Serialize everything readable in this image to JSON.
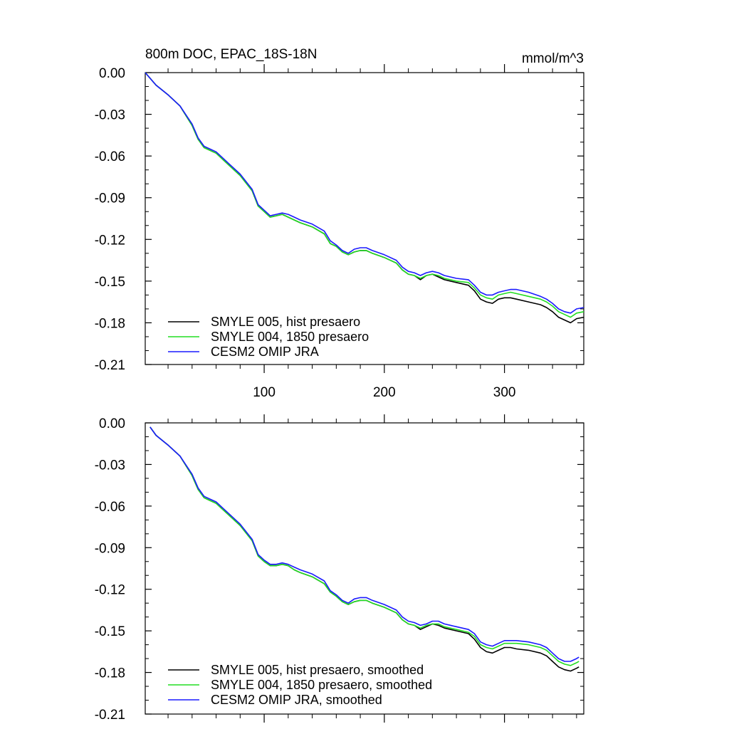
{
  "chart_data": [
    {
      "type": "line",
      "title": "800m DOC, EPAC_18S-18N",
      "units": "mmol/m^3",
      "xlabel": "",
      "ylabel": "",
      "xlim": [
        1,
        366
      ],
      "ylim": [
        -0.21,
        0.0
      ],
      "xticks": [
        100,
        200,
        300
      ],
      "xtick_labels": [
        "100",
        "200",
        "300"
      ],
      "yticks": [
        0.0,
        -0.03,
        -0.06,
        -0.09,
        -0.12,
        -0.15,
        -0.18,
        -0.21
      ],
      "ytick_labels": [
        "0.00",
        "-0.03",
        "-0.06",
        "-0.09",
        "-0.12",
        "-0.15",
        "-0.18",
        "-0.21"
      ],
      "legend_position": "bottom-left",
      "x": [
        1,
        10,
        20,
        30,
        40,
        45,
        50,
        55,
        60,
        65,
        70,
        80,
        90,
        95,
        100,
        105,
        110,
        115,
        120,
        125,
        130,
        140,
        150,
        155,
        160,
        165,
        170,
        175,
        180,
        185,
        190,
        200,
        210,
        215,
        220,
        225,
        230,
        235,
        240,
        245,
        250,
        260,
        270,
        275,
        280,
        285,
        290,
        295,
        300,
        305,
        310,
        320,
        330,
        335,
        340,
        345,
        350,
        355,
        360,
        366
      ],
      "series": [
        {
          "name": "SMYLE 005, hist presaero",
          "color": "#000000",
          "values": [
            0.0,
            -0.009,
            -0.016,
            -0.024,
            -0.038,
            -0.048,
            -0.054,
            -0.056,
            -0.058,
            -0.062,
            -0.066,
            -0.074,
            -0.085,
            -0.096,
            -0.1,
            -0.104,
            -0.103,
            -0.102,
            -0.104,
            -0.106,
            -0.108,
            -0.111,
            -0.116,
            -0.123,
            -0.125,
            -0.129,
            -0.131,
            -0.129,
            -0.128,
            -0.128,
            -0.13,
            -0.133,
            -0.137,
            -0.142,
            -0.145,
            -0.146,
            -0.149,
            -0.146,
            -0.145,
            -0.147,
            -0.149,
            -0.151,
            -0.153,
            -0.157,
            -0.163,
            -0.165,
            -0.166,
            -0.163,
            -0.162,
            -0.162,
            -0.163,
            -0.165,
            -0.167,
            -0.169,
            -0.172,
            -0.176,
            -0.178,
            -0.18,
            -0.177,
            -0.176
          ]
        },
        {
          "name": "SMYLE 004, 1850 presaero",
          "color": "#22dd22",
          "values": [
            0.0,
            -0.009,
            -0.016,
            -0.024,
            -0.038,
            -0.048,
            -0.054,
            -0.056,
            -0.058,
            -0.062,
            -0.066,
            -0.074,
            -0.085,
            -0.096,
            -0.1,
            -0.104,
            -0.103,
            -0.102,
            -0.104,
            -0.106,
            -0.108,
            -0.111,
            -0.116,
            -0.123,
            -0.125,
            -0.129,
            -0.131,
            -0.129,
            -0.128,
            -0.128,
            -0.13,
            -0.133,
            -0.137,
            -0.142,
            -0.145,
            -0.146,
            -0.148,
            -0.146,
            -0.145,
            -0.146,
            -0.148,
            -0.15,
            -0.151,
            -0.155,
            -0.16,
            -0.162,
            -0.163,
            -0.16,
            -0.159,
            -0.158,
            -0.159,
            -0.161,
            -0.163,
            -0.165,
            -0.168,
            -0.172,
            -0.174,
            -0.176,
            -0.173,
            -0.172
          ]
        },
        {
          "name": "CESM2 OMIP JRA",
          "color": "#1a1aff",
          "values": [
            0.0,
            -0.009,
            -0.016,
            -0.024,
            -0.037,
            -0.047,
            -0.053,
            -0.055,
            -0.057,
            -0.061,
            -0.065,
            -0.073,
            -0.084,
            -0.095,
            -0.099,
            -0.103,
            -0.102,
            -0.101,
            -0.102,
            -0.104,
            -0.106,
            -0.109,
            -0.114,
            -0.121,
            -0.124,
            -0.128,
            -0.13,
            -0.127,
            -0.126,
            -0.126,
            -0.128,
            -0.131,
            -0.135,
            -0.14,
            -0.143,
            -0.144,
            -0.146,
            -0.144,
            -0.143,
            -0.144,
            -0.146,
            -0.148,
            -0.149,
            -0.153,
            -0.158,
            -0.16,
            -0.16,
            -0.158,
            -0.157,
            -0.156,
            -0.156,
            -0.158,
            -0.161,
            -0.163,
            -0.166,
            -0.17,
            -0.172,
            -0.173,
            -0.17,
            -0.169
          ]
        }
      ]
    },
    {
      "type": "line",
      "title": "",
      "xlabel": "",
      "ylabel": "",
      "xlim": [
        1,
        366
      ],
      "ylim": [
        -0.21,
        0.0
      ],
      "xticks": [
        100,
        200,
        300
      ],
      "yticks": [
        0.0,
        -0.03,
        -0.06,
        -0.09,
        -0.12,
        -0.15,
        -0.18,
        -0.21
      ],
      "ytick_labels": [
        "0.00",
        "-0.03",
        "-0.06",
        "-0.09",
        "-0.12",
        "-0.15",
        "-0.18",
        "-0.21"
      ],
      "legend_position": "bottom-left",
      "x": [
        5,
        10,
        20,
        30,
        40,
        45,
        50,
        55,
        60,
        65,
        70,
        80,
        90,
        95,
        100,
        105,
        110,
        115,
        120,
        125,
        130,
        140,
        150,
        155,
        160,
        165,
        170,
        175,
        180,
        185,
        190,
        200,
        210,
        215,
        220,
        225,
        230,
        235,
        240,
        245,
        250,
        260,
        270,
        275,
        280,
        285,
        290,
        295,
        300,
        305,
        310,
        320,
        330,
        335,
        340,
        345,
        350,
        355,
        360,
        362
      ],
      "series": [
        {
          "name": "SMYLE 005, hist presaero, smoothed",
          "color": "#000000",
          "values": [
            -0.003,
            -0.009,
            -0.016,
            -0.024,
            -0.038,
            -0.048,
            -0.054,
            -0.056,
            -0.058,
            -0.062,
            -0.066,
            -0.074,
            -0.085,
            -0.096,
            -0.1,
            -0.103,
            -0.103,
            -0.102,
            -0.103,
            -0.106,
            -0.108,
            -0.111,
            -0.116,
            -0.122,
            -0.125,
            -0.129,
            -0.131,
            -0.129,
            -0.128,
            -0.128,
            -0.13,
            -0.133,
            -0.137,
            -0.142,
            -0.145,
            -0.146,
            -0.149,
            -0.147,
            -0.145,
            -0.146,
            -0.148,
            -0.15,
            -0.152,
            -0.156,
            -0.162,
            -0.165,
            -0.166,
            -0.164,
            -0.162,
            -0.162,
            -0.163,
            -0.164,
            -0.166,
            -0.168,
            -0.172,
            -0.176,
            -0.178,
            -0.179,
            -0.177,
            -0.176
          ]
        },
        {
          "name": "SMYLE 004, 1850 presaero, smoothed",
          "color": "#22dd22",
          "values": [
            -0.003,
            -0.009,
            -0.016,
            -0.024,
            -0.038,
            -0.048,
            -0.054,
            -0.056,
            -0.058,
            -0.062,
            -0.066,
            -0.074,
            -0.085,
            -0.096,
            -0.1,
            -0.103,
            -0.103,
            -0.102,
            -0.103,
            -0.106,
            -0.108,
            -0.111,
            -0.116,
            -0.122,
            -0.125,
            -0.129,
            -0.131,
            -0.129,
            -0.128,
            -0.128,
            -0.13,
            -0.133,
            -0.137,
            -0.142,
            -0.145,
            -0.146,
            -0.148,
            -0.146,
            -0.145,
            -0.145,
            -0.147,
            -0.149,
            -0.151,
            -0.154,
            -0.16,
            -0.162,
            -0.163,
            -0.161,
            -0.159,
            -0.159,
            -0.159,
            -0.16,
            -0.162,
            -0.164,
            -0.168,
            -0.172,
            -0.174,
            -0.175,
            -0.173,
            -0.172
          ]
        },
        {
          "name": "CESM2 OMIP JRA, smoothed",
          "color": "#1a1aff",
          "values": [
            -0.003,
            -0.009,
            -0.016,
            -0.024,
            -0.037,
            -0.047,
            -0.053,
            -0.055,
            -0.057,
            -0.061,
            -0.065,
            -0.073,
            -0.084,
            -0.095,
            -0.099,
            -0.102,
            -0.102,
            -0.101,
            -0.102,
            -0.104,
            -0.106,
            -0.109,
            -0.114,
            -0.121,
            -0.124,
            -0.128,
            -0.13,
            -0.127,
            -0.126,
            -0.126,
            -0.128,
            -0.131,
            -0.135,
            -0.14,
            -0.143,
            -0.144,
            -0.146,
            -0.145,
            -0.143,
            -0.143,
            -0.145,
            -0.147,
            -0.149,
            -0.152,
            -0.158,
            -0.16,
            -0.161,
            -0.159,
            -0.157,
            -0.157,
            -0.157,
            -0.158,
            -0.16,
            -0.162,
            -0.166,
            -0.17,
            -0.172,
            -0.172,
            -0.17,
            -0.169
          ]
        }
      ]
    }
  ]
}
